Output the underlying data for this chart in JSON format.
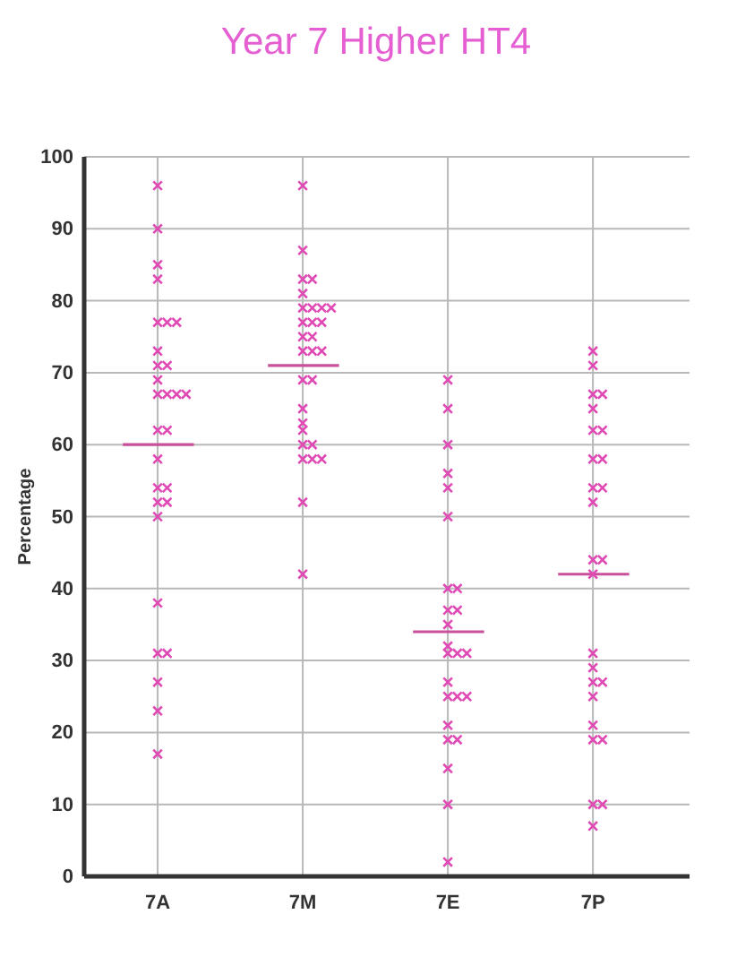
{
  "chart_data": {
    "type": "scatter",
    "title": "Year 7 Higher HT4",
    "ylabel": "Percentage",
    "categories": [
      "7A",
      "7M",
      "7E",
      "7P"
    ],
    "ylim": [
      0,
      100
    ],
    "yticks": [
      0,
      10,
      20,
      30,
      40,
      50,
      60,
      70,
      80,
      90,
      100
    ],
    "grid": true,
    "marker": "cross",
    "series": [
      {
        "color": "#e04ab5",
        "x": [
          "7A",
          "7A",
          "7A",
          "7A",
          "7A",
          "7A",
          "7A",
          "7A",
          "7A",
          "7A",
          "7A",
          "7A",
          "7A",
          "7A",
          "7A",
          "7A",
          "7A",
          "7A",
          "7A",
          "7A",
          "7A",
          "7A",
          "7A",
          "7A",
          "7A",
          "7A",
          "7A",
          "7A",
          "7A"
        ],
        "values": [
          96,
          90,
          85,
          83,
          77,
          77,
          77,
          73,
          71,
          71,
          69,
          67,
          67,
          67,
          67,
          62,
          62,
          58,
          54,
          54,
          52,
          52,
          50,
          38,
          31,
          31,
          27,
          23,
          17
        ]
      },
      {
        "color": "#e04ab5",
        "x": [
          "7M",
          "7M",
          "7M",
          "7M",
          "7M",
          "7M",
          "7M",
          "7M",
          "7M",
          "7M",
          "7M",
          "7M",
          "7M",
          "7M",
          "7M",
          "7M",
          "7M",
          "7M",
          "7M",
          "7M",
          "7M",
          "7M",
          "7M",
          "7M",
          "7M",
          "7M",
          "7M",
          "7M",
          "7M"
        ],
        "values": [
          96,
          87,
          83,
          83,
          81,
          79,
          79,
          79,
          79,
          77,
          77,
          77,
          75,
          75,
          73,
          73,
          73,
          69,
          69,
          65,
          63,
          62,
          60,
          60,
          58,
          58,
          58,
          52,
          42
        ]
      },
      {
        "color": "#e04ab5",
        "x": [
          "7E",
          "7E",
          "7E",
          "7E",
          "7E",
          "7E",
          "7E",
          "7E",
          "7E",
          "7E",
          "7E",
          "7E",
          "7E",
          "7E",
          "7E",
          "7E",
          "7E",
          "7E",
          "7E",
          "7E",
          "7E",
          "7E",
          "7E",
          "7E",
          "7E"
        ],
        "values": [
          69,
          65,
          60,
          56,
          54,
          50,
          40,
          40,
          37,
          37,
          35,
          32,
          31,
          31,
          31,
          27,
          25,
          25,
          25,
          21,
          19,
          19,
          15,
          10,
          2
        ]
      },
      {
        "color": "#e04ab5",
        "x": [
          "7P",
          "7P",
          "7P",
          "7P",
          "7P",
          "7P",
          "7P",
          "7P",
          "7P",
          "7P",
          "7P",
          "7P",
          "7P",
          "7P",
          "7P",
          "7P",
          "7P",
          "7P",
          "7P",
          "7P",
          "7P",
          "7P",
          "7P",
          "7P",
          "7P",
          "7P"
        ],
        "values": [
          73,
          71,
          67,
          67,
          65,
          62,
          62,
          58,
          58,
          54,
          54,
          52,
          44,
          44,
          42,
          31,
          29,
          27,
          27,
          25,
          21,
          19,
          19,
          10,
          10,
          7
        ]
      }
    ],
    "ref_lines": [
      {
        "axis": "y",
        "value": 60,
        "color": "#c9509a"
      },
      {
        "axis": "y",
        "value": 71,
        "color": "#c9509a"
      },
      {
        "axis": "y",
        "value": 34,
        "color": "#c9509a"
      },
      {
        "axis": "y",
        "value": 42,
        "color": "#c9509a"
      }
    ]
  }
}
